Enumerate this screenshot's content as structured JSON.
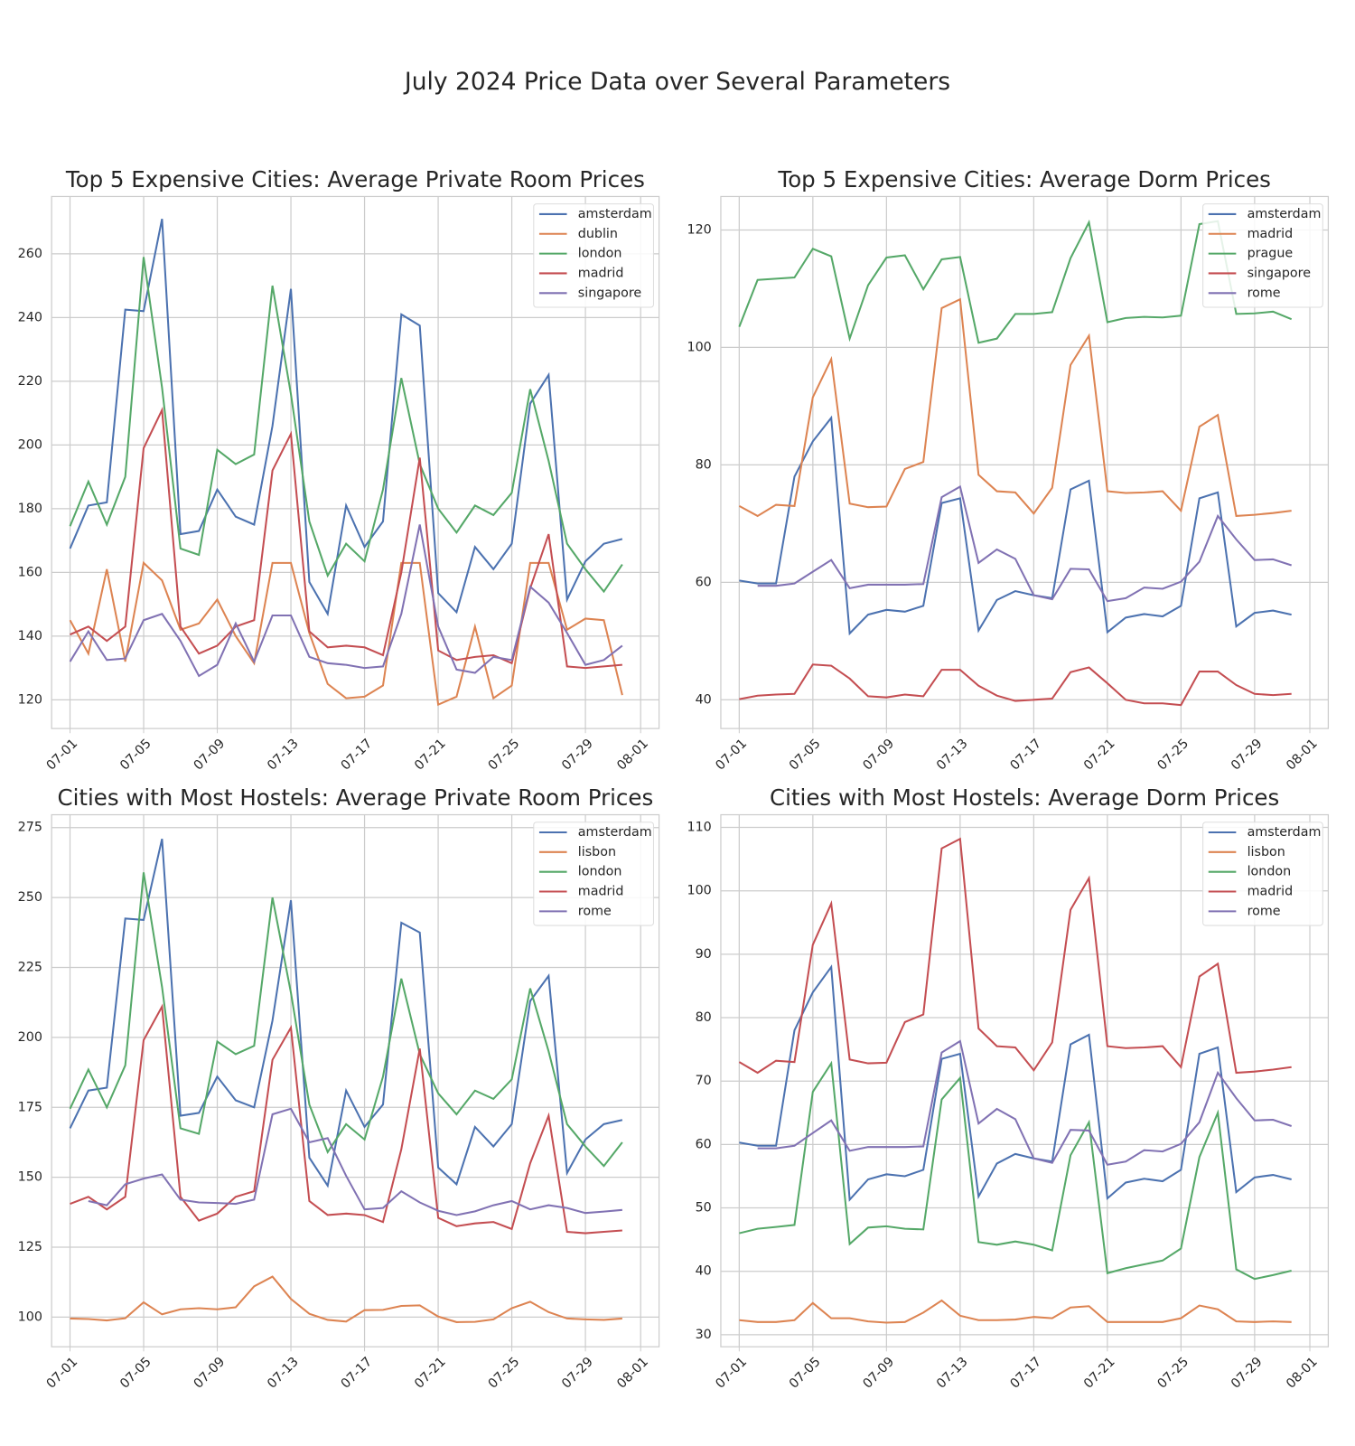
{
  "title": "July 2024 Price Data over Several Parameters",
  "chart_data": [
    {
      "type": "line",
      "title": "Top 5 Expensive Cities: Average Private Room Prices",
      "x": [
        "07-01",
        "07-02",
        "07-03",
        "07-04",
        "07-05",
        "07-06",
        "07-07",
        "07-08",
        "07-09",
        "07-10",
        "07-11",
        "07-12",
        "07-13",
        "07-14",
        "07-15",
        "07-16",
        "07-17",
        "07-18",
        "07-19",
        "07-20",
        "07-21",
        "07-22",
        "07-23",
        "07-24",
        "07-25",
        "07-26",
        "07-27",
        "07-28",
        "07-29",
        "07-30",
        "07-31"
      ],
      "xlim": [
        "06-30",
        "08-02"
      ],
      "xticks": [
        "07-01",
        "07-05",
        "07-09",
        "07-13",
        "07-17",
        "07-21",
        "07-25",
        "07-29",
        "08-01"
      ],
      "ylim": [
        111,
        278
      ],
      "yticks": [
        120,
        140,
        160,
        180,
        200,
        220,
        240,
        260
      ],
      "grid": true,
      "legend": "upper right",
      "series": [
        {
          "name": "amsterdam",
          "color": "#4c72b0",
          "values": [
            167.5,
            181,
            182,
            242.5,
            242,
            271,
            172,
            173,
            186,
            177.5,
            175,
            206,
            249,
            157,
            147,
            181,
            168,
            176,
            241,
            237.5,
            153.5,
            147.5,
            168,
            161,
            169,
            213,
            222,
            151.5,
            163.5,
            169,
            170.5
          ]
        },
        {
          "name": "dublin",
          "color": "#dd8452",
          "values": [
            145,
            134.5,
            161,
            132,
            163,
            157.5,
            142,
            144,
            151.5,
            140,
            131.5,
            163,
            163,
            141,
            125,
            120.5,
            121,
            124.5,
            163,
            163,
            118.5,
            121,
            143,
            120.5,
            124.5,
            163,
            163,
            142,
            145.5,
            145,
            121.5
          ]
        },
        {
          "name": "london",
          "color": "#55a868",
          "values": [
            174.5,
            188.5,
            175,
            190,
            259,
            218,
            167.5,
            165.5,
            198.5,
            194,
            197,
            250,
            216,
            176,
            159,
            169,
            163.5,
            186,
            221,
            194,
            180,
            172.5,
            181,
            178,
            185,
            217.5,
            195,
            169,
            161,
            154,
            162.5
          ]
        },
        {
          "name": "madrid",
          "color": "#c44e52",
          "values": [
            140.5,
            143,
            138.5,
            143,
            199,
            211,
            143,
            134.5,
            137,
            143,
            145,
            192,
            203.5,
            141.5,
            136.5,
            137,
            136.5,
            134,
            160,
            196,
            135.5,
            132.5,
            133.5,
            134,
            131.5,
            155,
            172,
            130.5,
            130,
            130.5,
            131
          ]
        },
        {
          "name": "singapore",
          "color": "#8172b3",
          "values": [
            132,
            141.5,
            132.5,
            133,
            145,
            147,
            138.5,
            127.5,
            131,
            144,
            132,
            146.5,
            146.5,
            133.5,
            131.5,
            131,
            130,
            130.5,
            147,
            175,
            143,
            129.5,
            128.5,
            133.5,
            132.5,
            155.5,
            150.5,
            141,
            131,
            132.5,
            137
          ]
        }
      ]
    },
    {
      "type": "line",
      "title": "Top 5 Expensive Cities: Average Dorm Prices",
      "x": [
        "07-01",
        "07-02",
        "07-03",
        "07-04",
        "07-05",
        "07-06",
        "07-07",
        "07-08",
        "07-09",
        "07-10",
        "07-11",
        "07-12",
        "07-13",
        "07-14",
        "07-15",
        "07-16",
        "07-17",
        "07-18",
        "07-19",
        "07-20",
        "07-21",
        "07-22",
        "07-23",
        "07-24",
        "07-25",
        "07-26",
        "07-27",
        "07-28",
        "07-29",
        "07-30",
        "07-31"
      ],
      "xlim": [
        "06-30",
        "08-02"
      ],
      "xticks": [
        "07-01",
        "07-05",
        "07-09",
        "07-13",
        "07-17",
        "07-21",
        "07-25",
        "07-29",
        "08-01"
      ],
      "ylim": [
        35.1,
        125.7
      ],
      "yticks": [
        40,
        60,
        80,
        100,
        120
      ],
      "grid": true,
      "legend": "upper right",
      "series": [
        {
          "name": "amsterdam",
          "color": "#4c72b0",
          "values": [
            60.3,
            59.8,
            59.8,
            78,
            84,
            88,
            51.3,
            54.5,
            55.3,
            55,
            56,
            73.5,
            74.3,
            51.8,
            57,
            58.5,
            57.8,
            57.3,
            75.8,
            77.3,
            51.5,
            54,
            54.6,
            54.2,
            56,
            74.3,
            75.3,
            52.5,
            54.8,
            55.2,
            54.5
          ]
        },
        {
          "name": "madrid",
          "color": "#dd8452",
          "values": [
            73,
            71.3,
            73.2,
            73,
            91.5,
            98,
            73.4,
            72.8,
            72.9,
            79.3,
            80.5,
            106.7,
            108.2,
            78.3,
            75.5,
            75.3,
            71.7,
            76.1,
            97,
            102,
            75.5,
            75.2,
            75.3,
            75.5,
            72.2,
            86.5,
            88.5,
            71.3,
            71.5,
            71.8,
            72.2
          ]
        },
        {
          "name": "prague",
          "color": "#55a868",
          "values": [
            103.5,
            111.5,
            111.7,
            111.9,
            116.8,
            115.5,
            101.5,
            110.6,
            115.3,
            115.7,
            109.9,
            115,
            115.4,
            100.8,
            101.5,
            105.7,
            105.7,
            106,
            115.2,
            121.3,
            104.3,
            105,
            105.2,
            105.1,
            105.4,
            121,
            121.5,
            105.7,
            105.8,
            106.1,
            104.8
          ]
        },
        {
          "name": "singapore",
          "color": "#c44e52",
          "values": [
            40.1,
            40.7,
            40.9,
            41,
            46,
            45.8,
            43.6,
            40.6,
            40.4,
            40.9,
            40.6,
            45.1,
            45.1,
            42.4,
            40.7,
            39.8,
            40,
            40.2,
            44.7,
            45.5,
            42.8,
            40,
            39.4,
            39.4,
            39.1,
            44.8,
            44.8,
            42.5,
            41,
            40.8,
            41
          ]
        },
        {
          "name": "rome",
          "color": "#8172b3",
          "values": [
            null,
            59.4,
            59.4,
            59.8,
            61.8,
            63.8,
            59,
            59.6,
            59.6,
            59.6,
            59.7,
            74.5,
            76.3,
            63.3,
            65.6,
            64,
            57.8,
            57.1,
            62.3,
            62.2,
            56.8,
            57.3,
            59.1,
            58.9,
            60.1,
            63.5,
            71.3,
            67.3,
            63.8,
            63.9,
            62.9
          ]
        }
      ]
    },
    {
      "type": "line",
      "title": "Cities with Most Hostels: Average Private Room Prices",
      "x": [
        "07-01",
        "07-02",
        "07-03",
        "07-04",
        "07-05",
        "07-06",
        "07-07",
        "07-08",
        "07-09",
        "07-10",
        "07-11",
        "07-12",
        "07-13",
        "07-14",
        "07-15",
        "07-16",
        "07-17",
        "07-18",
        "07-19",
        "07-20",
        "07-21",
        "07-22",
        "07-23",
        "07-24",
        "07-25",
        "07-26",
        "07-27",
        "07-28",
        "07-29",
        "07-30",
        "07-31"
      ],
      "xlim": [
        "06-30",
        "08-02"
      ],
      "xticks": [
        "07-01",
        "07-05",
        "07-09",
        "07-13",
        "07-17",
        "07-21",
        "07-25",
        "07-29",
        "08-01"
      ],
      "ylim": [
        89.4,
        279.6
      ],
      "yticks": [
        100,
        125,
        150,
        175,
        200,
        225,
        250,
        275
      ],
      "grid": true,
      "legend": "upper right",
      "series": [
        {
          "name": "amsterdam",
          "color": "#4c72b0",
          "values": [
            167.5,
            181,
            182,
            242.5,
            242,
            271,
            172,
            173,
            186,
            177.5,
            175,
            206,
            249,
            157,
            147,
            181,
            168,
            176,
            241,
            237.5,
            153.5,
            147.5,
            168,
            161,
            169,
            213,
            222,
            151.5,
            163.5,
            169,
            170.5
          ]
        },
        {
          "name": "lisbon",
          "color": "#dd8452",
          "values": [
            99.5,
            99.3,
            98.8,
            99.6,
            105.3,
            101,
            102.8,
            103.2,
            102.8,
            103.5,
            111,
            114.5,
            106.5,
            101.2,
            99,
            98.4,
            102.5,
            102.6,
            104,
            104.2,
            100.2,
            98.2,
            98.3,
            99.2,
            103.2,
            105.5,
            101.8,
            99.5,
            99.2,
            99,
            99.5
          ]
        },
        {
          "name": "london",
          "color": "#55a868",
          "values": [
            174.5,
            188.5,
            175,
            190,
            259,
            218,
            167.5,
            165.5,
            198.5,
            194,
            197,
            250,
            216,
            176,
            159,
            169,
            163.5,
            186,
            221,
            194,
            180,
            172.5,
            181,
            178,
            185,
            217.5,
            195,
            169,
            161,
            154,
            162.5
          ]
        },
        {
          "name": "madrid",
          "color": "#c44e52",
          "values": [
            140.5,
            143,
            138.5,
            143,
            199,
            211,
            143,
            134.5,
            137,
            143,
            145,
            192,
            203.5,
            141.5,
            136.5,
            137,
            136.5,
            134,
            160,
            196,
            135.5,
            132.5,
            133.5,
            134,
            131.5,
            155,
            172,
            130.5,
            130,
            130.5,
            131
          ]
        },
        {
          "name": "rome",
          "color": "#8172b3",
          "values": [
            null,
            141.5,
            140,
            147.5,
            149.5,
            151,
            142,
            141,
            140.8,
            140.5,
            142,
            172.5,
            174.5,
            162.5,
            164,
            150.5,
            138.5,
            139,
            145,
            141,
            138,
            136.5,
            137.8,
            140,
            141.5,
            138.5,
            140,
            139,
            137.2,
            137.7,
            138.3
          ]
        }
      ]
    },
    {
      "type": "line",
      "title": "Cities with Most Hostels: Average Dorm Prices",
      "x": [
        "07-01",
        "07-02",
        "07-03",
        "07-04",
        "07-05",
        "07-06",
        "07-07",
        "07-08",
        "07-09",
        "07-10",
        "07-11",
        "07-12",
        "07-13",
        "07-14",
        "07-15",
        "07-16",
        "07-17",
        "07-18",
        "07-19",
        "07-20",
        "07-21",
        "07-22",
        "07-23",
        "07-24",
        "07-25",
        "07-26",
        "07-27",
        "07-28",
        "07-29",
        "07-30",
        "07-31"
      ],
      "xlim": [
        "06-30",
        "08-02"
      ],
      "xticks": [
        "07-01",
        "07-05",
        "07-09",
        "07-13",
        "07-17",
        "07-21",
        "07-25",
        "07-29",
        "08-01"
      ],
      "ylim": [
        28.1,
        112
      ],
      "yticks": [
        30,
        40,
        50,
        60,
        70,
        80,
        90,
        100,
        110
      ],
      "grid": true,
      "legend": "upper right",
      "series": [
        {
          "name": "amsterdam",
          "color": "#4c72b0",
          "values": [
            60.3,
            59.8,
            59.8,
            78,
            84,
            88,
            51.3,
            54.5,
            55.3,
            55,
            56,
            73.5,
            74.3,
            51.8,
            57,
            58.5,
            57.8,
            57.3,
            75.8,
            77.3,
            51.5,
            54,
            54.6,
            54.2,
            56,
            74.3,
            75.3,
            52.5,
            54.8,
            55.2,
            54.5
          ]
        },
        {
          "name": "lisbon",
          "color": "#dd8452",
          "values": [
            32.3,
            32,
            32,
            32.3,
            35,
            32.6,
            32.6,
            32.1,
            31.9,
            32,
            33.5,
            35.4,
            33,
            32.3,
            32.3,
            32.4,
            32.8,
            32.6,
            34.3,
            34.5,
            32,
            32,
            32,
            32,
            32.6,
            34.6,
            34,
            32.1,
            32,
            32.1,
            32
          ]
        },
        {
          "name": "london",
          "color": "#55a868",
          "values": [
            46,
            46.7,
            47,
            47.3,
            68.3,
            72.8,
            44.3,
            46.9,
            47.1,
            46.7,
            46.6,
            67.1,
            70.5,
            44.6,
            44.2,
            44.7,
            44.2,
            43.3,
            58.3,
            63.5,
            39.7,
            40.5,
            41.1,
            41.7,
            43.6,
            58,
            65,
            40.3,
            38.8,
            39.4,
            40.1
          ]
        },
        {
          "name": "madrid",
          "color": "#c44e52",
          "values": [
            73,
            71.3,
            73.2,
            73,
            91.5,
            98,
            73.4,
            72.8,
            72.9,
            79.3,
            80.5,
            106.7,
            108.2,
            78.3,
            75.5,
            75.3,
            71.7,
            76.1,
            97,
            102,
            75.5,
            75.2,
            75.3,
            75.5,
            72.2,
            86.5,
            88.5,
            71.3,
            71.5,
            71.8,
            72.2
          ]
        },
        {
          "name": "rome",
          "color": "#8172b3",
          "values": [
            null,
            59.4,
            59.4,
            59.8,
            61.8,
            63.8,
            59,
            59.6,
            59.6,
            59.6,
            59.7,
            74.5,
            76.3,
            63.3,
            65.6,
            64,
            57.8,
            57.1,
            62.3,
            62.2,
            56.8,
            57.3,
            59.1,
            58.9,
            60.1,
            63.5,
            71.3,
            67.3,
            63.8,
            63.9,
            62.9
          ]
        }
      ]
    }
  ]
}
